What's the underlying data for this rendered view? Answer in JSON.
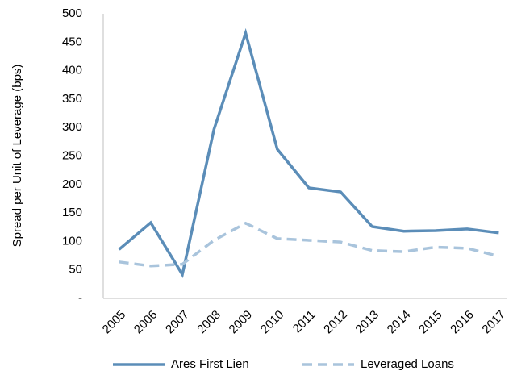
{
  "chart_data": {
    "type": "line",
    "ylabel": "Spread per Unit of Leverage (bps)",
    "categories": [
      "2005",
      "2006",
      "2007",
      "2008",
      "2009",
      "2010",
      "2011",
      "2012",
      "2013",
      "2014",
      "2015",
      "2016",
      "2017"
    ],
    "series": [
      {
        "name": "Ares First Lien",
        "color": "#5b8db8",
        "dashed": false,
        "values": [
          86,
          133,
          42,
          297,
          466,
          262,
          194,
          187,
          126,
          118,
          119,
          122,
          115
        ]
      },
      {
        "name": "Leveraged Loans",
        "color": "#a9c4dc",
        "dashed": true,
        "values": [
          64,
          57,
          60,
          102,
          132,
          105,
          102,
          99,
          84,
          82,
          90,
          88,
          74
        ]
      }
    ],
    "ylim": [
      0,
      500
    ],
    "yticks": [
      {
        "value": 0,
        "label": "-"
      },
      50,
      100,
      150,
      200,
      250,
      300,
      350,
      400,
      450,
      500
    ],
    "grid": false,
    "legend": "bottom"
  }
}
